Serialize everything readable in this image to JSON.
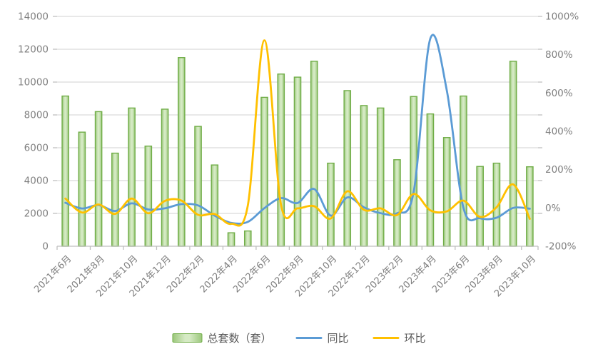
{
  "chart_data": {
    "type": "combo_bar_line",
    "title": "",
    "categories": [
      "2021年6月",
      "2021年7月",
      "2021年8月",
      "2021年9月",
      "2021年10月",
      "2021年11月",
      "2021年12月",
      "2022年1月",
      "2022年2月",
      "2022年3月",
      "2022年4月",
      "2022年5月",
      "2022年6月",
      "2022年7月",
      "2022年8月",
      "2022年9月",
      "2022年10月",
      "2022年11月",
      "2022年12月",
      "2023年1月",
      "2023年2月",
      "2023年3月",
      "2023年4月",
      "2023年5月",
      "2023年6月",
      "2023年7月",
      "2023年8月",
      "2023年9月",
      "2023年10月"
    ],
    "x_tick_interval": 2,
    "x_tick_labels": [
      "2021年6月",
      "2021年8月",
      "2021年10月",
      "2021年12月",
      "2022年2月",
      "2022年4月",
      "2022年6月",
      "2022年8月",
      "2022年10月",
      "2022年12月",
      "2023年2月",
      "2023年4月",
      "2023年6月",
      "2023年8月",
      "2023年10月"
    ],
    "left_axis": {
      "min": 0,
      "max": 14000,
      "step": 2000,
      "tick_labels": [
        "0",
        "2000",
        "4000",
        "6000",
        "8000",
        "10000",
        "12000",
        "14000"
      ]
    },
    "right_axis": {
      "min": -200,
      "max": 1000,
      "step": 200,
      "tick_labels": [
        "-200%",
        "0%",
        "200%",
        "400%",
        "600%",
        "800%",
        "1000%"
      ]
    },
    "series": [
      {
        "name": "总套数（套）",
        "type": "bar",
        "axis": "left",
        "fill_light": "#D5EAC4",
        "fill_dark": "#9CC87C",
        "border": "#70AD47",
        "values": [
          9150,
          6950,
          8200,
          5670,
          8420,
          6100,
          8350,
          11490,
          7300,
          4950,
          820,
          930,
          9070,
          10490,
          10300,
          11270,
          5060,
          9480,
          8570,
          8420,
          5270,
          9120,
          8060,
          6620,
          9150,
          4860,
          5060,
          11270,
          4840
        ]
      },
      {
        "name": "同比",
        "type": "line",
        "axis": "right",
        "color": "#5B9BD5",
        "values": [
          27,
          -3,
          15,
          -16,
          24,
          -8,
          -2,
          20,
          13,
          -40,
          -78,
          -73,
          -1,
          51,
          26,
          99,
          -40,
          55,
          3,
          -27,
          -28,
          84,
          883,
          612,
          1,
          -54,
          -51,
          0,
          -4
        ]
      },
      {
        "name": "环比",
        "type": "line",
        "axis": "right",
        "color": "#FFC000",
        "values": [
          49,
          -24,
          18,
          -31,
          49,
          -28,
          37,
          38,
          -36,
          -32,
          -83,
          13,
          875,
          16,
          -2,
          9,
          -55,
          87,
          -10,
          -2,
          -37,
          73,
          -12,
          -18,
          38,
          -47,
          4,
          123,
          -57
        ]
      }
    ],
    "grid": true,
    "gridline_color": "#D9D9D9",
    "axis_line_color": "#BFBFBF",
    "tick_label_color": "#7F7F7F",
    "legend_position": "bottom"
  }
}
